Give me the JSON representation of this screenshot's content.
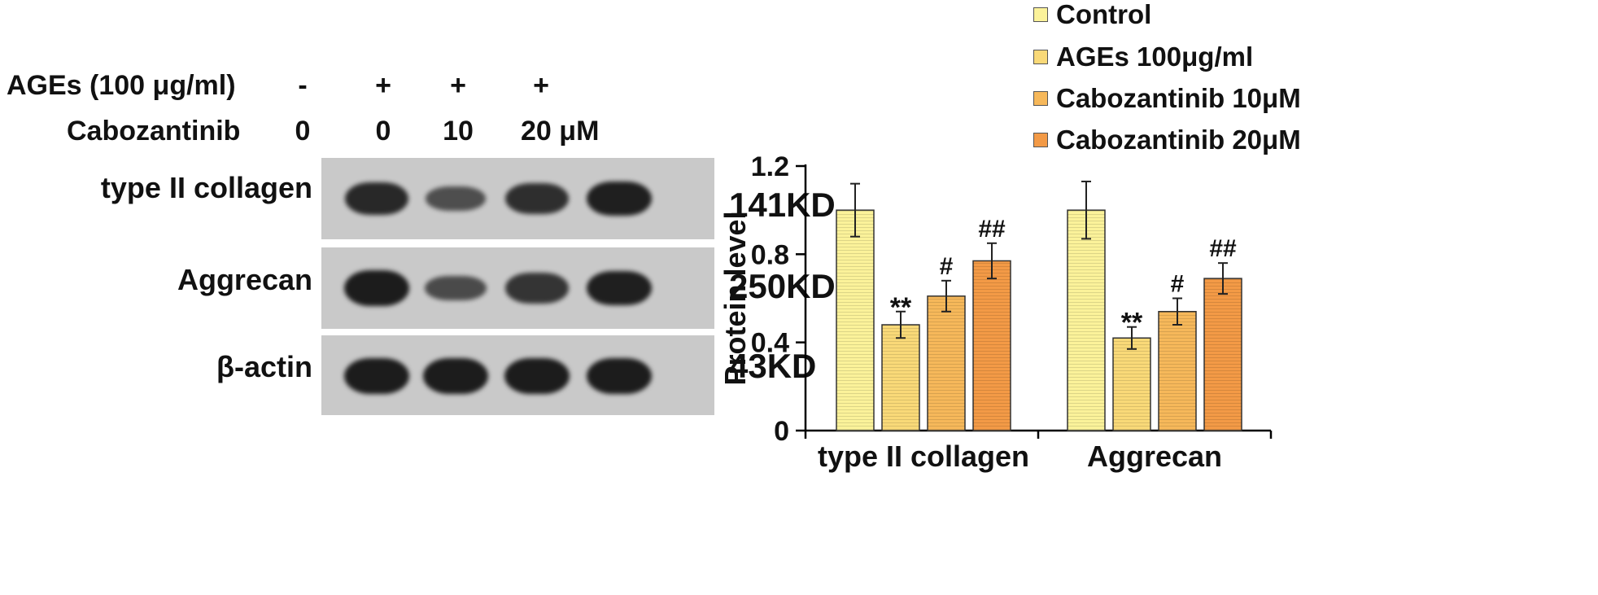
{
  "blot": {
    "row_headers": [
      {
        "label": "AGEs (100 μg/ml)",
        "lanes": [
          "-",
          "+",
          "+",
          "+"
        ]
      },
      {
        "label": "Cabozantinib",
        "lanes": [
          "0",
          "0",
          "10",
          "20 μM"
        ]
      }
    ],
    "rows": [
      {
        "label": "type II collagen",
        "kd": "141KD",
        "intensity": [
          0.85,
          0.35,
          0.75,
          0.95
        ]
      },
      {
        "label": "Aggrecan",
        "kd": "250KD",
        "intensity": [
          1.0,
          0.4,
          0.7,
          0.95
        ]
      },
      {
        "label": "β-actin",
        "kd": "43KD",
        "intensity": [
          1.0,
          1.0,
          1.0,
          1.0
        ]
      }
    ]
  },
  "legend": {
    "items": [
      {
        "label": "Control",
        "color": "#fbf29a"
      },
      {
        "label": "AGEs 100μg/ml",
        "color": "#f9d978"
      },
      {
        "label": "Cabozantinib 10μM",
        "color": "#f6b85a"
      },
      {
        "label": "Cabozantinib  20μM",
        "color": "#f39a46"
      }
    ]
  },
  "chart_data": {
    "type": "bar",
    "categories": [
      "type II collagen",
      "Aggrecan"
    ],
    "ylabel": "Protein level",
    "ylim": [
      0,
      1.2
    ],
    "yticks": [
      "0",
      "0.4",
      "0.8",
      "1.2"
    ],
    "series": [
      {
        "name": "Control",
        "color": "#fbf29a",
        "values": [
          1.0,
          1.0
        ],
        "errors": [
          0.12,
          0.13
        ],
        "annotations": [
          "",
          ""
        ]
      },
      {
        "name": "AGEs 100μg/ml",
        "color": "#f9d978",
        "values": [
          0.48,
          0.42
        ],
        "errors": [
          0.06,
          0.05
        ],
        "annotations": [
          "**",
          "**"
        ]
      },
      {
        "name": "Cabozantinib 10μM",
        "color": "#f6b85a",
        "values": [
          0.61,
          0.54
        ],
        "errors": [
          0.07,
          0.06
        ],
        "annotations": [
          "#",
          "#"
        ]
      },
      {
        "name": "Cabozantinib  20μM",
        "color": "#f39a46",
        "values": [
          0.77,
          0.69
        ],
        "errors": [
          0.08,
          0.07
        ],
        "annotations": [
          "##",
          "##"
        ]
      }
    ]
  }
}
